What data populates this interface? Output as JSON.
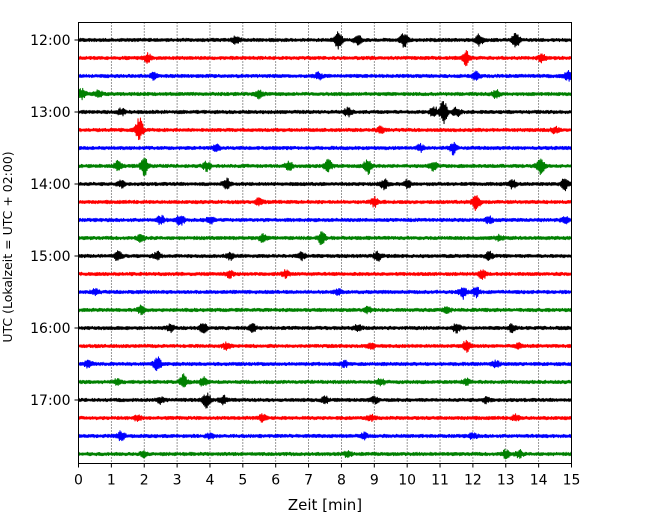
{
  "chart_data": {
    "type": "line",
    "title": "",
    "xlabel": "Zeit  [min]",
    "ylabel": "UTC (Lokalzeit = UTC + 02:00)",
    "xlim": [
      0,
      15
    ],
    "x_ticks": [
      "0",
      "1",
      "2",
      "3",
      "4",
      "5",
      "6",
      "7",
      "8",
      "9",
      "10",
      "11",
      "12",
      "13",
      "14",
      "15"
    ],
    "y_ticks": [
      "12:00",
      "13:00",
      "14:00",
      "15:00",
      "16:00",
      "17:00"
    ],
    "grid": "vertical dotted lines at each minute",
    "trace_interval_min": 15,
    "start_time": "12:00",
    "colors": [
      "#000000",
      "#ff0000",
      "#0000ff",
      "#008000"
    ],
    "series": [
      {
        "start": "12:00",
        "color": "#000000",
        "events": [
          {
            "t": 4.8,
            "a": 0.9
          },
          {
            "t": 7.9,
            "a": 1.8
          },
          {
            "t": 8.5,
            "a": 1.0
          },
          {
            "t": 9.9,
            "a": 1.6
          },
          {
            "t": 12.2,
            "a": 1.2
          },
          {
            "t": 13.3,
            "a": 1.8
          }
        ]
      },
      {
        "start": "12:15",
        "color": "#ff0000",
        "events": [
          {
            "t": 2.1,
            "a": 0.9
          },
          {
            "t": 11.8,
            "a": 1.6
          },
          {
            "t": 14.1,
            "a": 0.8
          }
        ]
      },
      {
        "start": "12:30",
        "color": "#0000ff",
        "events": [
          {
            "t": 2.3,
            "a": 0.8
          },
          {
            "t": 7.3,
            "a": 0.7
          },
          {
            "t": 12.1,
            "a": 0.8
          },
          {
            "t": 14.9,
            "a": 1.0
          }
        ]
      },
      {
        "start": "12:45",
        "color": "#008000",
        "events": [
          {
            "t": 0.1,
            "a": 1.2
          },
          {
            "t": 0.6,
            "a": 0.9
          },
          {
            "t": 5.5,
            "a": 0.8
          },
          {
            "t": 12.7,
            "a": 0.9
          }
        ]
      },
      {
        "start": "13:00",
        "color": "#000000",
        "events": [
          {
            "t": 1.3,
            "a": 0.7
          },
          {
            "t": 8.2,
            "a": 0.9
          },
          {
            "t": 10.8,
            "a": 1.3
          },
          {
            "t": 11.1,
            "a": 2.6
          },
          {
            "t": 11.5,
            "a": 1.0
          }
        ]
      },
      {
        "start": "13:15",
        "color": "#ff0000",
        "events": [
          {
            "t": 1.85,
            "a": 2.8
          },
          {
            "t": 9.2,
            "a": 0.7
          },
          {
            "t": 14.5,
            "a": 0.6
          }
        ]
      },
      {
        "start": "13:30",
        "color": "#0000ff",
        "events": [
          {
            "t": 4.2,
            "a": 0.6
          },
          {
            "t": 10.4,
            "a": 0.7
          },
          {
            "t": 11.4,
            "a": 1.3
          }
        ]
      },
      {
        "start": "13:45",
        "color": "#008000",
        "events": [
          {
            "t": 1.2,
            "a": 1.0
          },
          {
            "t": 2.0,
            "a": 2.2
          },
          {
            "t": 3.9,
            "a": 1.0
          },
          {
            "t": 6.4,
            "a": 1.0
          },
          {
            "t": 7.6,
            "a": 1.3
          },
          {
            "t": 8.8,
            "a": 1.7
          },
          {
            "t": 10.8,
            "a": 0.9
          },
          {
            "t": 14.05,
            "a": 2.3
          }
        ]
      },
      {
        "start": "14:00",
        "color": "#000000",
        "events": [
          {
            "t": 1.3,
            "a": 0.7
          },
          {
            "t": 4.5,
            "a": 1.2
          },
          {
            "t": 9.3,
            "a": 1.0
          },
          {
            "t": 10.0,
            "a": 0.8
          },
          {
            "t": 13.2,
            "a": 0.9
          },
          {
            "t": 14.8,
            "a": 1.3
          }
        ]
      },
      {
        "start": "14:15",
        "color": "#ff0000",
        "events": [
          {
            "t": 5.5,
            "a": 0.8
          },
          {
            "t": 9.0,
            "a": 1.0
          },
          {
            "t": 12.1,
            "a": 1.8
          }
        ]
      },
      {
        "start": "14:30",
        "color": "#0000ff",
        "events": [
          {
            "t": 2.5,
            "a": 0.9
          },
          {
            "t": 3.1,
            "a": 1.2
          },
          {
            "t": 4.0,
            "a": 0.8
          },
          {
            "t": 12.5,
            "a": 0.7
          },
          {
            "t": 14.8,
            "a": 0.8
          }
        ]
      },
      {
        "start": "14:45",
        "color": "#008000",
        "events": [
          {
            "t": 1.9,
            "a": 0.8
          },
          {
            "t": 5.6,
            "a": 0.8
          },
          {
            "t": 7.4,
            "a": 1.5
          },
          {
            "t": 12.8,
            "a": 0.6
          }
        ]
      },
      {
        "start": "15:00",
        "color": "#000000",
        "events": [
          {
            "t": 1.2,
            "a": 1.1
          },
          {
            "t": 2.4,
            "a": 0.9
          },
          {
            "t": 4.6,
            "a": 0.8
          },
          {
            "t": 6.8,
            "a": 0.8
          },
          {
            "t": 9.1,
            "a": 1.0
          },
          {
            "t": 12.5,
            "a": 0.8
          }
        ]
      },
      {
        "start": "15:15",
        "color": "#ff0000",
        "events": [
          {
            "t": 4.6,
            "a": 0.7
          },
          {
            "t": 6.3,
            "a": 0.7
          },
          {
            "t": 12.3,
            "a": 1.1
          }
        ]
      },
      {
        "start": "15:30",
        "color": "#0000ff",
        "events": [
          {
            "t": 0.5,
            "a": 0.7
          },
          {
            "t": 7.9,
            "a": 0.6
          },
          {
            "t": 11.7,
            "a": 1.4
          },
          {
            "t": 12.1,
            "a": 1.0
          }
        ]
      },
      {
        "start": "15:45",
        "color": "#008000",
        "events": [
          {
            "t": 1.9,
            "a": 0.8
          },
          {
            "t": 8.8,
            "a": 0.6
          },
          {
            "t": 11.2,
            "a": 0.6
          }
        ]
      },
      {
        "start": "16:00",
        "color": "#000000",
        "events": [
          {
            "t": 2.8,
            "a": 0.7
          },
          {
            "t": 3.8,
            "a": 1.0
          },
          {
            "t": 5.3,
            "a": 0.8
          },
          {
            "t": 8.5,
            "a": 0.8
          },
          {
            "t": 11.5,
            "a": 0.9
          },
          {
            "t": 13.2,
            "a": 0.8
          }
        ]
      },
      {
        "start": "16:15",
        "color": "#ff0000",
        "events": [
          {
            "t": 4.5,
            "a": 0.7
          },
          {
            "t": 8.9,
            "a": 0.6
          },
          {
            "t": 11.8,
            "a": 1.2
          },
          {
            "t": 13.4,
            "a": 0.6
          }
        ]
      },
      {
        "start": "16:30",
        "color": "#0000ff",
        "events": [
          {
            "t": 0.3,
            "a": 0.7
          },
          {
            "t": 2.4,
            "a": 1.5
          },
          {
            "t": 8.1,
            "a": 0.6
          },
          {
            "t": 12.7,
            "a": 0.6
          }
        ]
      },
      {
        "start": "16:45",
        "color": "#008000",
        "events": [
          {
            "t": 1.2,
            "a": 0.8
          },
          {
            "t": 3.2,
            "a": 1.6
          },
          {
            "t": 3.8,
            "a": 1.0
          },
          {
            "t": 9.2,
            "a": 0.7
          },
          {
            "t": 11.8,
            "a": 0.6
          }
        ]
      },
      {
        "start": "17:00",
        "color": "#000000",
        "events": [
          {
            "t": 2.5,
            "a": 0.7
          },
          {
            "t": 3.9,
            "a": 1.7
          },
          {
            "t": 4.4,
            "a": 0.9
          },
          {
            "t": 7.5,
            "a": 0.7
          },
          {
            "t": 9.0,
            "a": 0.7
          },
          {
            "t": 12.4,
            "a": 0.6
          }
        ]
      },
      {
        "start": "17:15",
        "color": "#ff0000",
        "events": [
          {
            "t": 1.8,
            "a": 0.6
          },
          {
            "t": 5.6,
            "a": 0.7
          },
          {
            "t": 8.9,
            "a": 0.6
          },
          {
            "t": 13.3,
            "a": 0.6
          }
        ]
      },
      {
        "start": "17:30",
        "color": "#0000ff",
        "events": [
          {
            "t": 1.3,
            "a": 1.0
          },
          {
            "t": 4.0,
            "a": 0.6
          },
          {
            "t": 8.7,
            "a": 0.6
          },
          {
            "t": 12.0,
            "a": 0.6
          }
        ]
      },
      {
        "start": "17:45",
        "color": "#008000",
        "events": [
          {
            "t": 2.0,
            "a": 0.6
          },
          {
            "t": 8.2,
            "a": 0.7
          },
          {
            "t": 13.0,
            "a": 0.9
          },
          {
            "t": 13.4,
            "a": 0.8
          }
        ]
      }
    ]
  }
}
